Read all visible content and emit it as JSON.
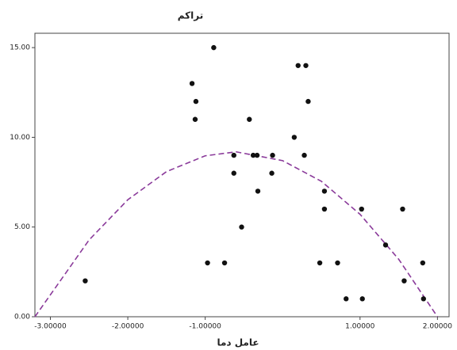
{
  "chart_data": {
    "type": "scatter",
    "title": "تراکم",
    "x_label": "عامل دما",
    "color": "#111111",
    "x": [
      -2.55,
      -1.17,
      -1.12,
      -1.13,
      -0.89,
      -0.97,
      -0.75,
      -0.63,
      -0.63,
      -0.53,
      -0.43,
      -0.38,
      -0.33,
      -0.32,
      -0.14,
      -0.13,
      0.15,
      0.2,
      0.3,
      0.33,
      0.28,
      0.48,
      0.54,
      0.54,
      0.71,
      0.82,
      1.02,
      1.03,
      1.33,
      1.55,
      1.57,
      1.81,
      1.82
    ],
    "values": [
      2,
      13,
      12,
      11,
      15,
      3,
      3,
      9,
      8,
      5,
      11,
      9,
      9,
      7,
      8,
      9,
      10,
      14,
      14,
      12,
      9,
      3,
      7,
      6,
      3,
      1,
      6,
      1,
      4,
      6,
      2,
      3,
      1
    ],
    "fit": {
      "type": "line",
      "color": "#8a3a9a",
      "dashed": true,
      "x": [
        -3.2,
        -2.5,
        -2,
        -1.5,
        -1,
        -0.6,
        0,
        0.5,
        1,
        1.5,
        2
      ],
      "values": [
        0,
        4.28,
        6.52,
        8.09,
        8.97,
        9.19,
        8.7,
        7.55,
        5.71,
        3.2,
        0
      ]
    },
    "xlim": [
      -3.2,
      2.15
    ],
    "ylim": [
      0,
      15.8
    ],
    "xticks": [
      {
        "value": -3,
        "label": "-3.00000"
      },
      {
        "value": -2,
        "label": "-2.00000"
      },
      {
        "value": -1,
        "label": "-1.00000"
      },
      {
        "value": 1,
        "label": "1.00000"
      },
      {
        "value": 2,
        "label": "2.00000"
      }
    ],
    "yticks": [
      {
        "value": 0,
        "label": "0.00"
      },
      {
        "value": 5,
        "label": "5.00"
      },
      {
        "value": 10,
        "label": "10.00"
      },
      {
        "value": 15,
        "label": "15.00"
      }
    ]
  }
}
